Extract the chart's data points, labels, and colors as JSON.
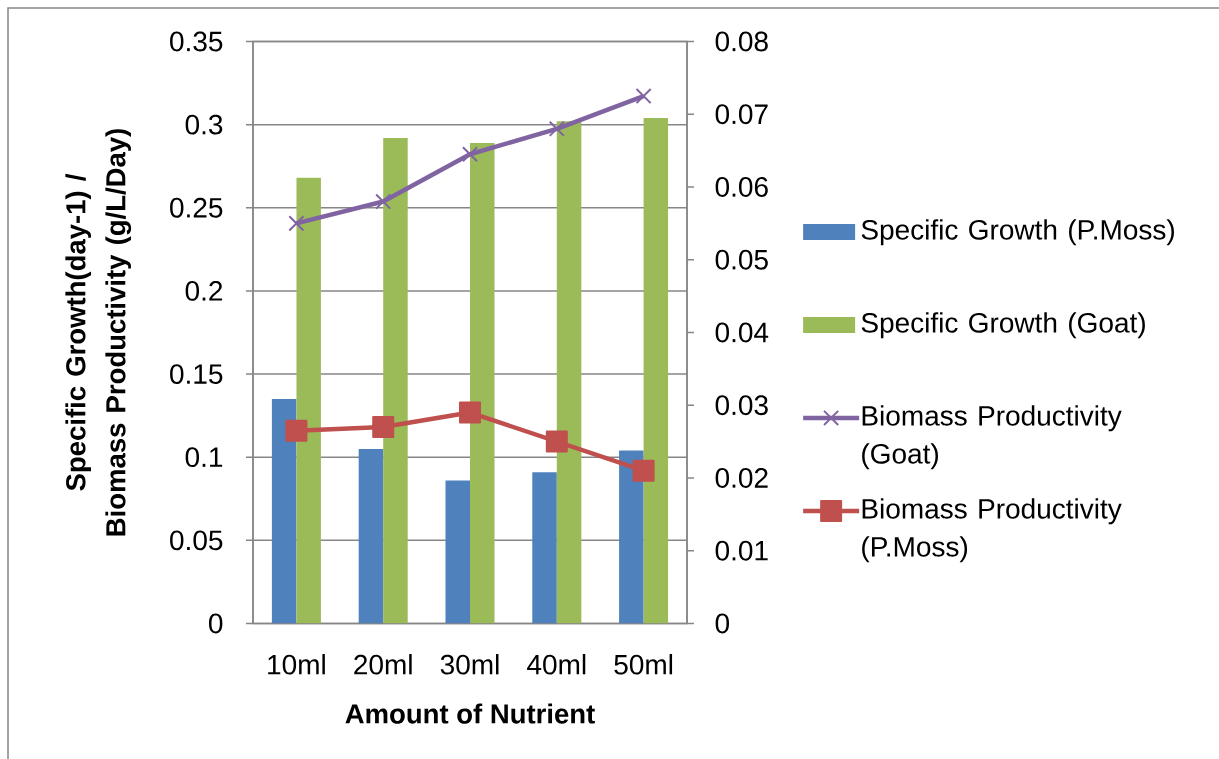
{
  "chart_data": {
    "type": "bar",
    "xlabel": "Amount of Nutrient",
    "ylabel": "Specific Growth(day-1) / Biomass Productivity (g/L/Day)",
    "categories": [
      "10ml",
      "20ml",
      "30ml",
      "40ml",
      "50ml"
    ],
    "series": [
      {
        "name": "Specific Growth (P.Moss)",
        "color": "#4f81bd",
        "values": [
          0.135,
          0.105,
          0.086,
          0.091,
          0.104
        ]
      },
      {
        "name": "Specific Growth (Goat)",
        "color": "#9bbb59",
        "values": [
          0.268,
          0.292,
          0.289,
          0.302,
          0.304
        ]
      },
      {
        "name": "Biomass Productivity (Goat)",
        "type": "line",
        "axis": "y2",
        "color": "#8064a2",
        "marker": "cross",
        "line_style": "solid",
        "values": [
          0.055,
          0.058,
          0.0645,
          0.068,
          0.0725
        ]
      },
      {
        "name": "Biomass Productivity (P.Moss)",
        "type": "line",
        "axis": "y2",
        "color": "#c0504d",
        "marker": "square",
        "line_style": "solid",
        "values": [
          0.0265,
          0.027,
          0.029,
          0.025,
          0.021
        ]
      }
    ],
    "ylim": [
      0,
      0.35
    ],
    "yticks": [
      0,
      0.05,
      0.1,
      0.15,
      0.2,
      0.25,
      0.3,
      0.35
    ],
    "y2lim": [
      0,
      0.08
    ],
    "y2ticks": [
      0,
      0.01,
      0.02,
      0.03,
      0.04,
      0.05,
      0.06,
      0.07,
      0.08
    ],
    "grid": "y",
    "legend": "right"
  }
}
